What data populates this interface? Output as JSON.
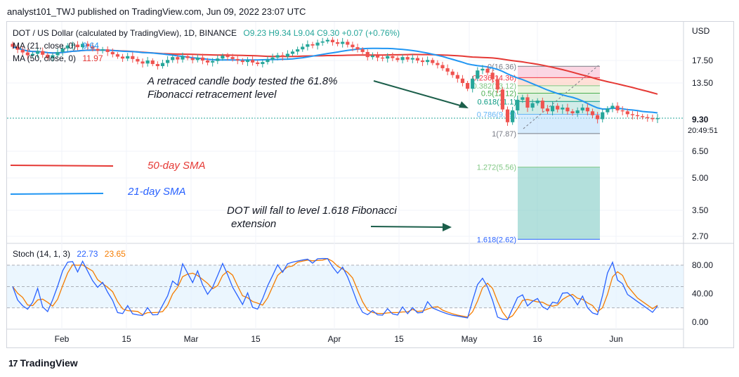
{
  "header": {
    "publisher": "analyst101_TWJ published on TradingView.com, Jun 09, 2022 23:07 UTC"
  },
  "legend": {
    "symbol": "DOT / US Dollar (calculated by TradingView), 1D, BINANCE",
    "ohlc": "O9.23  H9.34  L9.04  C9.30  +0.07 (+0.76%)",
    "ma21_label": "MA (21, close, 0)",
    "ma21_value": "9.64",
    "ma50_label": "MA (50, close, 0)",
    "ma50_value": "11.97"
  },
  "price_axis": {
    "unit": "USD",
    "ticks": [
      "17.50",
      "13.50",
      "6.50",
      "5.00",
      "3.50",
      "2.70"
    ],
    "current": "9.30",
    "countdown": "20:49:51"
  },
  "stoch": {
    "label": "Stoch (14, 1, 3)",
    "k": "22.73",
    "d": "23.65",
    "ticks": [
      "80.00",
      "40.00",
      "0.00"
    ]
  },
  "time_axis": [
    "Feb",
    "15",
    "Mar",
    "15",
    "Apr",
    "15",
    "May",
    "16",
    "Jun"
  ],
  "annotations": {
    "retrace_line1": "A retraced candle body tested the 61.8%",
    "retrace_line2": "Fibonacci retracement level",
    "sma50": "50-day SMA",
    "sma21": "21-day SMA",
    "target_line1": "DOT will fall to level 1.618 Fibonacci",
    "target_line2": "extension"
  },
  "fib_levels": [
    {
      "label": "0(16.36)",
      "ratio": 0,
      "price": 16.36,
      "color": "#787b86"
    },
    {
      "label": "0.236(14.36)",
      "ratio": 0.236,
      "price": 14.36,
      "color": "#f23645"
    },
    {
      "label": "0.382(13.12)",
      "ratio": 0.382,
      "price": 13.12,
      "color": "#81c784"
    },
    {
      "label": "0.5(12.12)",
      "ratio": 0.5,
      "price": 12.12,
      "color": "#4caf50"
    },
    {
      "label": "0.618(11.1)",
      "ratio": 0.618,
      "price": 11.1,
      "color": "#089981"
    },
    {
      "label": "0.786(9.69)",
      "ratio": 0.786,
      "price": 9.69,
      "color": "#64b5f6"
    },
    {
      "label": "1(7.87)",
      "ratio": 1,
      "price": 7.87,
      "color": "#787b86"
    },
    {
      "label": "1.272(5.56)",
      "ratio": 1.272,
      "price": 5.56,
      "color": "#81c784"
    },
    {
      "label": "1.618(2.62)",
      "ratio": 1.618,
      "price": 2.62,
      "color": "#2962ff"
    }
  ],
  "footer": {
    "brand": "TradingView"
  },
  "colors": {
    "up": "#26a69a",
    "down": "#ef5350",
    "sma50": "#e53935",
    "sma21": "#2196f3",
    "stochK": "#2962ff",
    "stochD": "#f57c00",
    "band": "#e3f2fd"
  },
  "chart_data": {
    "type": "candlestick",
    "title": "DOT / US Dollar (calculated by TradingView), 1D, BINANCE",
    "ylabel": "USD",
    "ylim": [
      2.5,
      22
    ],
    "x_ticks": [
      "Feb",
      "15",
      "Mar",
      "15",
      "Apr",
      "15",
      "May",
      "16",
      "Jun"
    ],
    "close": [
      20.5,
      19.8,
      19.2,
      18.6,
      18.9,
      19.5,
      18.7,
      18.0,
      18.6,
      19.3,
      20.1,
      20.8,
      21.0,
      20.4,
      21.2,
      20.6,
      20.0,
      19.6,
      19.9,
      19.3,
      18.8,
      18.3,
      17.9,
      18.4,
      17.8,
      17.3,
      16.9,
      17.5,
      16.8,
      16.4,
      17.0,
      17.6,
      18.2,
      17.7,
      18.4,
      18.0,
      17.6,
      18.1,
      17.5,
      17.1,
      17.4,
      17.9,
      18.5,
      18.2,
      17.8,
      17.5,
      17.2,
      17.6,
      17.1,
      16.8,
      17.2,
      17.7,
      18.1,
      18.6,
      18.3,
      18.9,
      19.4,
      19.9,
      20.5,
      21.1,
      20.8,
      21.5,
      21.8,
      22.2,
      21.6,
      21.2,
      21.7,
      21.0,
      20.4,
      19.9,
      19.3,
      18.2,
      18.5,
      18.1,
      17.9,
      18.4,
      18.0,
      17.6,
      18.2,
      17.7,
      18.0,
      17.5,
      17.2,
      17.6,
      17.0,
      16.6,
      16.0,
      15.4,
      14.8,
      14.2,
      13.5,
      12.7,
      14.2,
      15.6,
      15.9,
      15.2,
      14.1,
      12.6,
      10.2,
      8.9,
      10.1,
      11.3,
      11.6,
      10.4,
      10.9,
      11.2,
      10.3,
      10.0,
      10.6,
      10.2,
      10.4,
      10.0,
      9.8,
      10.1,
      10.4,
      10.0,
      9.6,
      9.2,
      9.9,
      10.3,
      10.6,
      10.1,
      10.0,
      9.7,
      9.6,
      9.5,
      9.4,
      9.3,
      9.2,
      9.3
    ],
    "series": [
      {
        "name": "MA (21, close, 0)",
        "last": 9.64
      },
      {
        "name": "MA (50, close, 0)",
        "last": 11.97
      }
    ],
    "stochastic": {
      "k_last": 22.73,
      "d_last": 23.65,
      "ylim": [
        0,
        100
      ],
      "bands": [
        20,
        80
      ]
    },
    "fibonacci_high": 16.36,
    "fibonacci_low": 7.87
  }
}
